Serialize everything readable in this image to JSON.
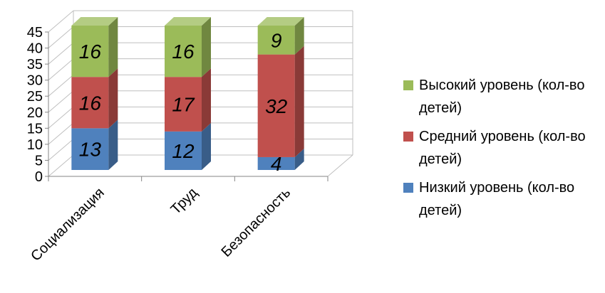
{
  "chart_data": {
    "type": "bar",
    "stacked": true,
    "three_d": true,
    "categories": [
      "Социализация",
      "Труд",
      "Безопасность"
    ],
    "series": [
      {
        "name": "Низкий уровень (кол-во детей)",
        "values": [
          13,
          12,
          4
        ],
        "color": "#4F81BD"
      },
      {
        "name": "Средний уровень (кол-во детей)",
        "values": [
          16,
          17,
          32
        ],
        "color": "#C0504D"
      },
      {
        "name": "Высокий уровень (кол-во детей)",
        "values": [
          16,
          16,
          9
        ],
        "color": "#9BBB59"
      }
    ],
    "y_ticks": [
      "0",
      "5",
      "10",
      "15",
      "20",
      "25",
      "30",
      "35",
      "40",
      "45"
    ],
    "ylim": [
      0,
      45
    ],
    "grid": true,
    "legend_position": "right",
    "data_labels": true
  }
}
